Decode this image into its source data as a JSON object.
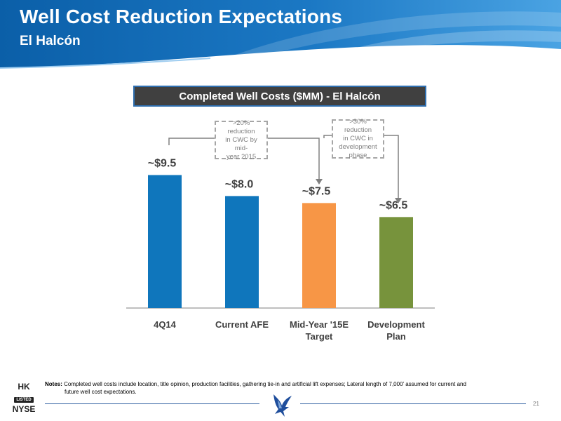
{
  "header": {
    "title": "Well Cost Reduction Expectations",
    "subtitle": "El Halcón"
  },
  "chart_data": {
    "type": "bar",
    "title": "Completed Well Costs ($MM) - El Halcón",
    "categories": [
      "4Q14",
      "Current AFE",
      "Mid-Year '15E Target",
      "Development Plan"
    ],
    "category_lines": [
      [
        "4Q14"
      ],
      [
        "Current AFE"
      ],
      [
        "Mid-Year '15E",
        "Target"
      ],
      [
        "Development",
        "Plan"
      ]
    ],
    "values": [
      9.5,
      8.0,
      7.5,
      6.5
    ],
    "data_labels": [
      "~$9.5",
      "~$8.0",
      "~$7.5",
      "~$6.5"
    ],
    "bar_colors": [
      "#0f76bc",
      "#0f76bc",
      "#f79646",
      "#77933c"
    ],
    "ylim": [
      0,
      10
    ],
    "grid": false,
    "annotations": [
      ">20% reduction in CWC by mid-year 2015",
      ">30% reduction in CWC in development phase"
    ]
  },
  "callouts": {
    "first_lines": [
      ">20% reduction",
      "in CWC by mid-",
      "year 2015"
    ],
    "second_lines": [
      ">30% reduction",
      "in CWC in",
      "development",
      "phase"
    ]
  },
  "notes": {
    "label": "Notes:",
    "line1": "Completed well costs include location, title opinion, production facilities, gathering tie-in and artificial lift expenses; Lateral length of 7,000’ assumed for current and",
    "line2": "future well cost expectations."
  },
  "footer": {
    "page_number": "21",
    "exchange_hk": "HK",
    "exchange_listed": "LISTED",
    "exchange_nyse": "NYSE",
    "logo_icon": "falcon-logo-icon"
  },
  "colors": {
    "header_dark": "#0b5fa8",
    "header_light": "#2e8fd6",
    "accent_blue": "#0f76bc",
    "accent_orange": "#f79646",
    "accent_green": "#77933c"
  }
}
